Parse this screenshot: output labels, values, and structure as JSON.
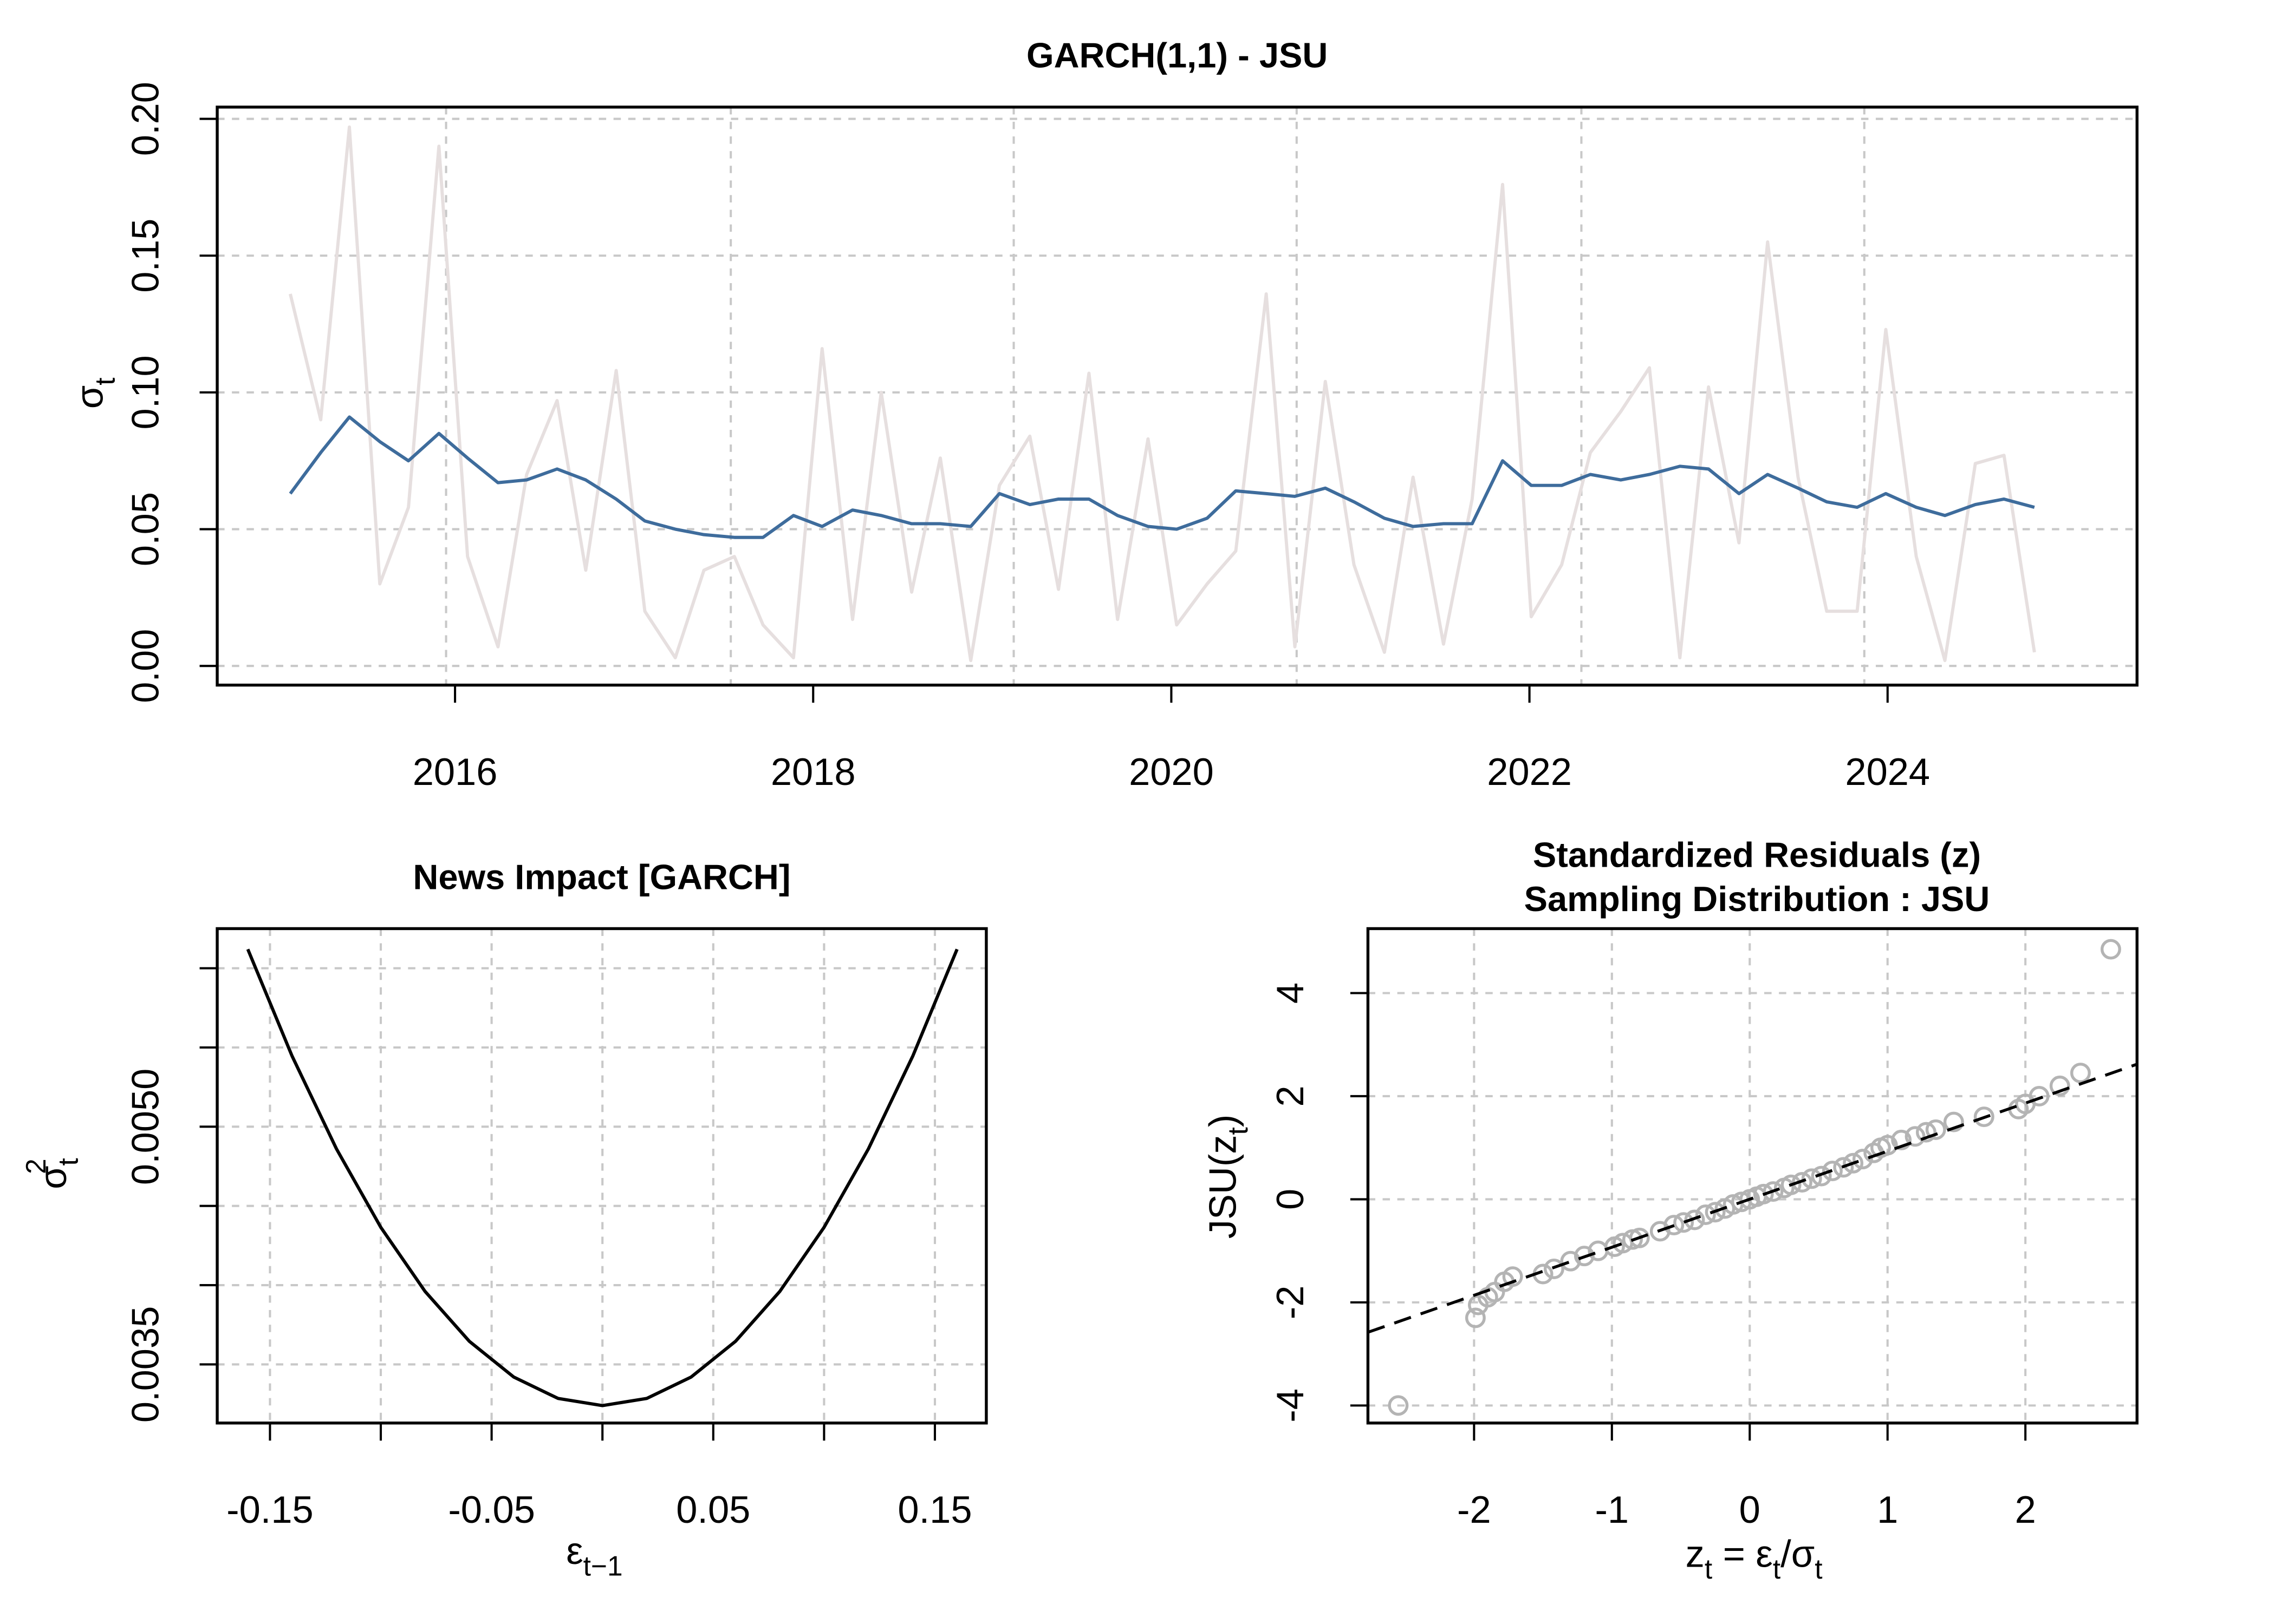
{
  "chart_data": [
    {
      "type": "line",
      "title": "GARCH(1,1) - JSU",
      "ylabel": [
        "σ",
        "t"
      ],
      "x": [
        2015.08,
        2015.25,
        2015.41,
        2015.58,
        2015.74,
        2015.91,
        2016.07,
        2016.24,
        2016.4,
        2016.57,
        2016.73,
        2016.9,
        2017.06,
        2017.23,
        2017.39,
        2017.56,
        2017.72,
        2017.89,
        2018.05,
        2018.22,
        2018.38,
        2018.55,
        2018.71,
        2018.88,
        2019.04,
        2019.21,
        2019.37,
        2019.54,
        2019.7,
        2019.87,
        2020.03,
        2020.2,
        2020.36,
        2020.53,
        2020.69,
        2020.86,
        2021.02,
        2021.19,
        2021.35,
        2021.52,
        2021.68,
        2021.85,
        2022.01,
        2022.18,
        2022.34,
        2022.51,
        2022.67,
        2022.84,
        2023.0,
        2023.17,
        2023.33,
        2023.5,
        2023.66,
        2023.83,
        2023.99,
        2024.16,
        2024.32,
        2024.49,
        2024.65,
        2024.82
      ],
      "series": [
        {
          "color": "#e6dfdf",
          "values": [
            0.136,
            0.09,
            0.197,
            0.03,
            0.058,
            0.19,
            0.04,
            0.007,
            0.07,
            0.097,
            0.035,
            0.108,
            0.02,
            0.003,
            0.035,
            0.04,
            0.015,
            0.003,
            0.116,
            0.017,
            0.1,
            0.027,
            0.076,
            0.002,
            0.066,
            0.084,
            0.028,
            0.107,
            0.017,
            0.083,
            0.015,
            0.03,
            0.042,
            0.136,
            0.007,
            0.104,
            0.037,
            0.005,
            0.069,
            0.008,
            0.061,
            0.176,
            0.018,
            0.037,
            0.078,
            0.093,
            0.109,
            0.003,
            0.102,
            0.045,
            0.155,
            0.069,
            0.02,
            0.02,
            0.123,
            0.04,
            0.002,
            0.074,
            0.077,
            0.005
          ]
        },
        {
          "color": "#3e6c9c",
          "values": [
            0.063,
            0.078,
            0.091,
            0.082,
            0.075,
            0.085,
            0.076,
            0.067,
            0.068,
            0.072,
            0.068,
            0.061,
            0.053,
            0.05,
            0.048,
            0.047,
            0.047,
            0.055,
            0.051,
            0.057,
            0.055,
            0.052,
            0.052,
            0.051,
            0.063,
            0.059,
            0.061,
            0.061,
            0.055,
            0.051,
            0.05,
            0.054,
            0.064,
            0.063,
            0.062,
            0.065,
            0.06,
            0.054,
            0.051,
            0.052,
            0.052,
            0.075,
            0.066,
            0.066,
            0.07,
            0.068,
            0.07,
            0.073,
            0.072,
            0.063,
            0.07,
            0.065,
            0.06,
            0.058,
            0.063,
            0.058,
            0.055,
            0.059,
            0.061,
            0.058
          ]
        }
      ],
      "xlim": [
        2014.672,
        2025.393
      ],
      "ylim": [
        -0.007,
        0.2043
      ],
      "xticks": [
        2016,
        2018,
        2020,
        2022,
        2024
      ],
      "xgrid": [
        2015.95,
        2017.54,
        2019.12,
        2020.7,
        2022.29,
        2023.87
      ],
      "yticks": [
        {
          "value": 0,
          "label": "0.00"
        },
        {
          "value": 0.05,
          "label": "0.05"
        },
        {
          "value": 0.1,
          "label": "0.10"
        },
        {
          "value": 0.15,
          "label": "0.15"
        },
        {
          "value": 0.2,
          "label": "0.20"
        }
      ],
      "grid": true
    },
    {
      "type": "line",
      "title": "News Impact [GARCH]",
      "xlabel": [
        "ε",
        "t−1"
      ],
      "ylabel": [
        "σ",
        "t",
        "2"
      ],
      "x": [
        -0.16,
        -0.14,
        -0.12,
        -0.1,
        -0.08,
        -0.06,
        -0.04,
        -0.02,
        0,
        0.02,
        0.04,
        0.06,
        0.08,
        0.1,
        0.12,
        0.14,
        0.16
      ],
      "series": [
        {
          "color": "#000000",
          "values": [
            0.00612,
            0.005445,
            0.00486,
            0.004365,
            0.00396,
            0.003645,
            0.00342,
            0.003285,
            0.00324,
            0.003285,
            0.00342,
            0.003645,
            0.00396,
            0.004365,
            0.00486,
            0.005445,
            0.00612
          ]
        }
      ],
      "xlim": [
        -0.1738,
        0.1732
      ],
      "ylim": [
        0.00313,
        0.00625
      ],
      "xticks": [
        -0.15,
        -0.05,
        0.05,
        0.15
      ],
      "xticks_unlabeled": [
        -0.1,
        0,
        0.1
      ],
      "yticks": [
        {
          "value": 0.0035,
          "label": "0.0035"
        },
        {
          "value": 0.005,
          "label": "0.0050"
        }
      ],
      "yticks_unlabeled": [
        0.004,
        0.0045,
        0.0055,
        0.006
      ],
      "grid": true
    },
    {
      "type": "scatter",
      "title": [
        "Standardized Residuals (z)",
        "Sampling Distribution : JSU"
      ],
      "xlabel": [
        "z",
        "t",
        " = ε",
        "t",
        "/σ",
        "t"
      ],
      "ylabel": [
        "JSU(z",
        "t",
        ")"
      ],
      "x": [
        -2.55,
        -1.99,
        -1.97,
        -1.9,
        -1.85,
        -1.78,
        -1.72,
        -1.5,
        -1.42,
        -1.3,
        -1.2,
        -1.1,
        -0.98,
        -0.92,
        -0.85,
        -0.8,
        -0.65,
        -0.55,
        -0.48,
        -0.4,
        -0.32,
        -0.25,
        -0.18,
        -0.12,
        -0.06,
        0,
        0.05,
        0.1,
        0.17,
        0.25,
        0.3,
        0.38,
        0.45,
        0.52,
        0.6,
        0.68,
        0.75,
        0.82,
        0.9,
        0.95,
        1.0,
        1.1,
        1.2,
        1.28,
        1.35,
        1.48,
        1.7,
        1.95,
        2.0,
        2.1,
        2.25,
        2.4,
        2.62
      ],
      "values": [
        -4.0,
        -2.3,
        -2.05,
        -1.9,
        -1.8,
        -1.6,
        -1.5,
        -1.45,
        -1.35,
        -1.2,
        -1.1,
        -1.0,
        -0.92,
        -0.85,
        -0.78,
        -0.75,
        -0.62,
        -0.5,
        -0.45,
        -0.4,
        -0.3,
        -0.25,
        -0.18,
        -0.1,
        -0.05,
        0,
        0.05,
        0.1,
        0.15,
        0.22,
        0.28,
        0.33,
        0.4,
        0.45,
        0.55,
        0.62,
        0.7,
        0.78,
        0.9,
        1.0,
        1.05,
        1.15,
        1.22,
        1.3,
        1.35,
        1.5,
        1.6,
        1.75,
        1.85,
        2.0,
        2.2,
        2.45,
        4.85
      ],
      "color": "#b4b4b4",
      "refline": {
        "x": [
          -2.77,
          2.81
        ],
        "y": [
          -2.58,
          2.62
        ]
      },
      "xlim": [
        -2.77,
        2.81
      ],
      "ylim": [
        -4.34,
        5.25
      ],
      "xticks": [
        -2,
        -1,
        0,
        1,
        2
      ],
      "yticks": [
        -4,
        -2,
        0,
        2,
        4
      ],
      "grid": true
    }
  ]
}
